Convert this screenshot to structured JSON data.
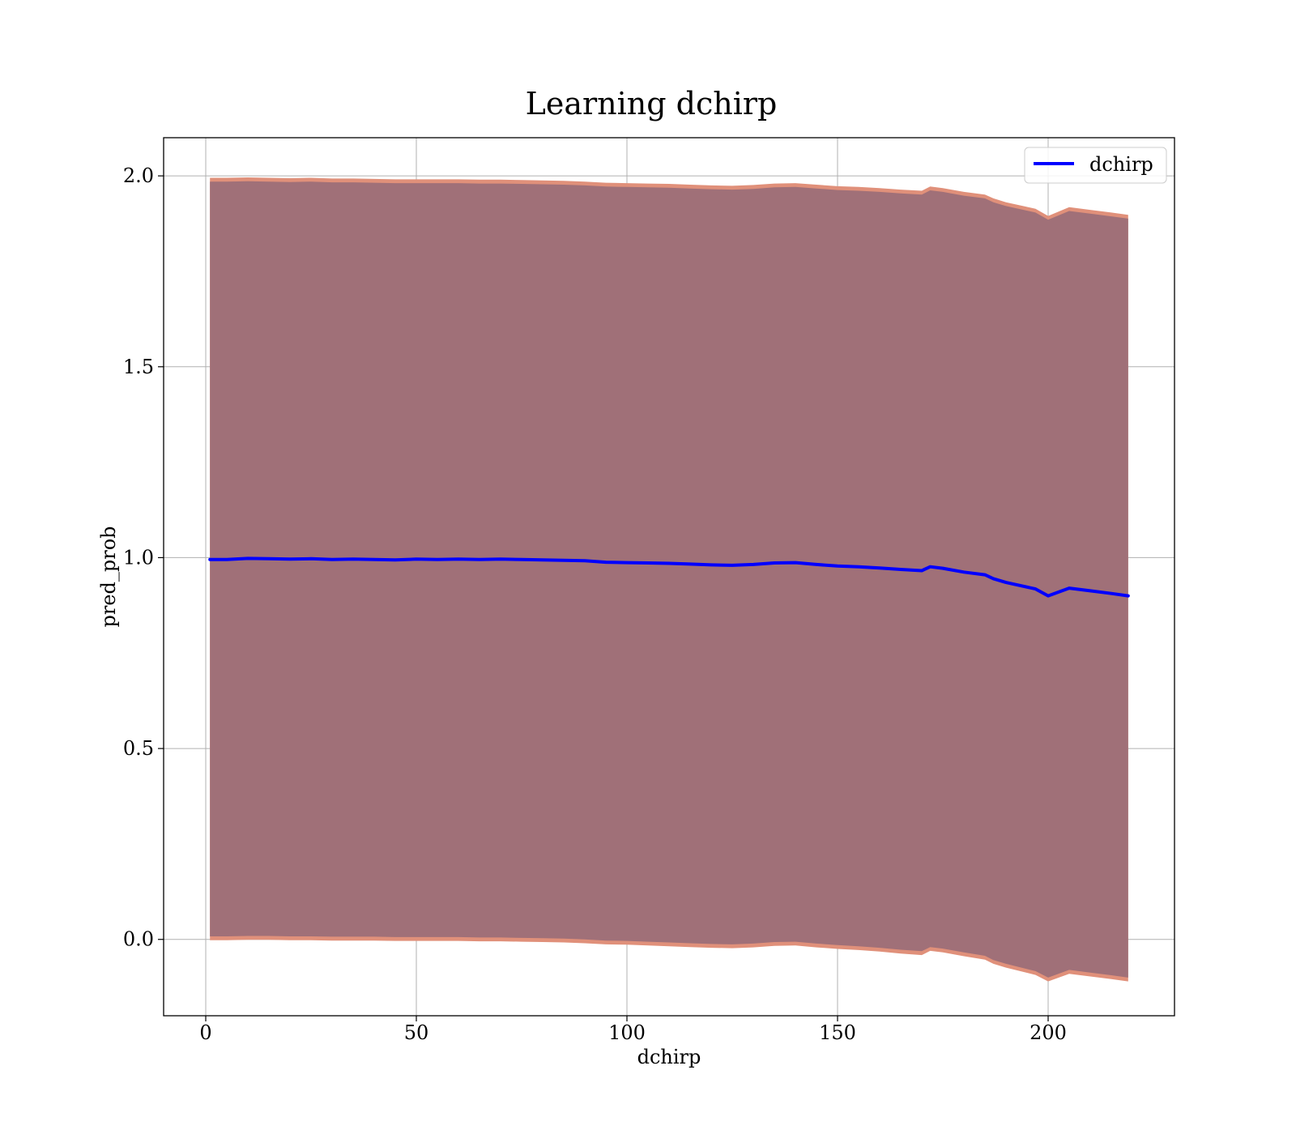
{
  "chart_data": {
    "type": "line",
    "title": "Learning dchirp",
    "xlabel": "dchirp",
    "ylabel": "pred_prob",
    "xlim": [
      -10,
      230
    ],
    "ylim": [
      -0.2,
      2.1
    ],
    "xticks": [
      0,
      50,
      100,
      150,
      200
    ],
    "yticks": [
      0.0,
      0.5,
      1.0,
      1.5,
      2.0
    ],
    "xtick_labels": [
      "0",
      "50",
      "100",
      "150",
      "200"
    ],
    "ytick_labels": [
      "0.0",
      "0.5",
      "1.0",
      "1.5",
      "2.0"
    ],
    "grid": true,
    "legend_position": "top-right",
    "series": [
      {
        "name": "dchirp",
        "color": "#0000ff",
        "x": [
          1,
          5,
          10,
          15,
          20,
          25,
          30,
          35,
          40,
          45,
          50,
          55,
          60,
          65,
          70,
          75,
          80,
          85,
          90,
          95,
          100,
          105,
          110,
          115,
          120,
          125,
          130,
          135,
          140,
          145,
          150,
          155,
          160,
          165,
          170,
          172,
          175,
          180,
          185,
          187,
          190,
          197,
          200,
          205,
          210,
          215,
          219
        ],
        "y": [
          0.995,
          0.995,
          0.998,
          0.997,
          0.996,
          0.997,
          0.995,
          0.996,
          0.995,
          0.994,
          0.996,
          0.995,
          0.996,
          0.995,
          0.996,
          0.995,
          0.994,
          0.993,
          0.992,
          0.988,
          0.987,
          0.986,
          0.985,
          0.983,
          0.981,
          0.98,
          0.982,
          0.986,
          0.987,
          0.982,
          0.978,
          0.976,
          0.973,
          0.969,
          0.966,
          0.976,
          0.972,
          0.962,
          0.955,
          0.945,
          0.935,
          0.918,
          0.9,
          0.92,
          0.913,
          0.906,
          0.9
        ]
      }
    ],
    "bands": [
      {
        "outer_color": "#e0907a",
        "inner_color": "#a07078",
        "upper_outer": [
          1.995,
          1.995,
          1.996,
          1.995,
          1.994,
          1.995,
          1.993,
          1.993,
          1.992,
          1.991,
          1.991,
          1.991,
          1.991,
          1.99,
          1.99,
          1.989,
          1.988,
          1.987,
          1.985,
          1.982,
          1.981,
          1.98,
          1.979,
          1.977,
          1.975,
          1.974,
          1.976,
          1.98,
          1.981,
          1.977,
          1.973,
          1.971,
          1.968,
          1.964,
          1.961,
          1.972,
          1.968,
          1.958,
          1.951,
          1.941,
          1.931,
          1.914,
          1.895,
          1.918,
          1.911,
          1.904,
          1.898
        ],
        "upper_inner": [
          1.985,
          1.985,
          1.986,
          1.985,
          1.984,
          1.985,
          1.983,
          1.983,
          1.982,
          1.981,
          1.981,
          1.981,
          1.981,
          1.98,
          1.98,
          1.979,
          1.978,
          1.977,
          1.975,
          1.972,
          1.971,
          1.97,
          1.969,
          1.967,
          1.965,
          1.964,
          1.966,
          1.97,
          1.971,
          1.967,
          1.963,
          1.961,
          1.958,
          1.954,
          1.951,
          1.962,
          1.958,
          1.948,
          1.941,
          1.931,
          1.921,
          1.904,
          1.885,
          1.908,
          1.901,
          1.894,
          1.888
        ],
        "lower_inner": [
          0.008,
          0.008,
          0.009,
          0.009,
          0.008,
          0.008,
          0.007,
          0.007,
          0.007,
          0.006,
          0.006,
          0.006,
          0.006,
          0.005,
          0.005,
          0.004,
          0.003,
          0.002,
          0.0,
          -0.003,
          -0.004,
          -0.006,
          -0.008,
          -0.01,
          -0.012,
          -0.013,
          -0.011,
          -0.007,
          -0.006,
          -0.011,
          -0.015,
          -0.018,
          -0.022,
          -0.027,
          -0.031,
          -0.02,
          -0.024,
          -0.034,
          -0.043,
          -0.054,
          -0.064,
          -0.083,
          -0.1,
          -0.08,
          -0.087,
          -0.094,
          -0.1
        ],
        "lower_outer": [
          -0.002,
          -0.002,
          -0.001,
          -0.001,
          -0.002,
          -0.002,
          -0.003,
          -0.003,
          -0.003,
          -0.004,
          -0.004,
          -0.004,
          -0.004,
          -0.005,
          -0.005,
          -0.006,
          -0.007,
          -0.008,
          -0.01,
          -0.013,
          -0.014,
          -0.016,
          -0.018,
          -0.02,
          -0.022,
          -0.023,
          -0.021,
          -0.017,
          -0.016,
          -0.021,
          -0.025,
          -0.028,
          -0.032,
          -0.037,
          -0.041,
          -0.03,
          -0.034,
          -0.044,
          -0.053,
          -0.064,
          -0.074,
          -0.093,
          -0.11,
          -0.09,
          -0.097,
          -0.104,
          -0.11
        ]
      }
    ]
  }
}
